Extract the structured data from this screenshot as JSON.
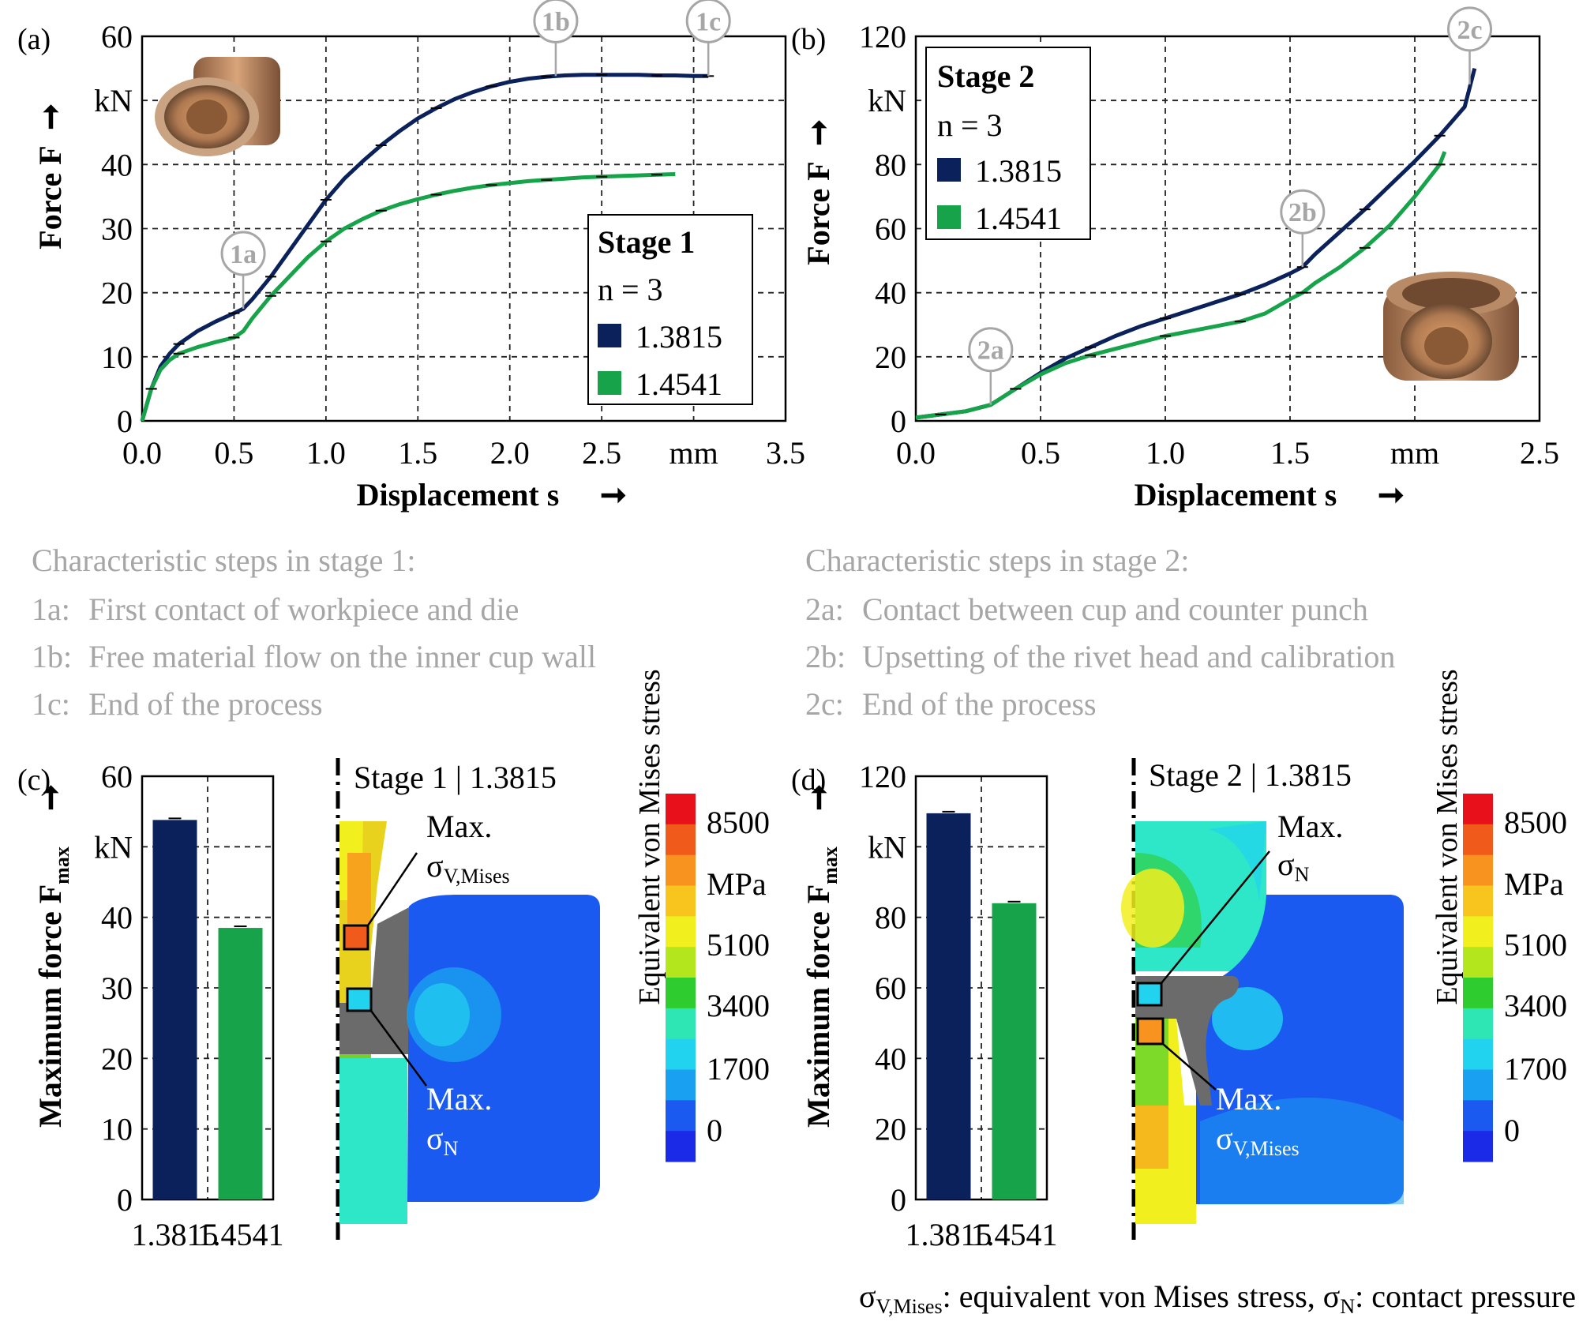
{
  "colors": {
    "s13815": "#0a215b",
    "s14541": "#16a34a",
    "label_grey": "#a6a6a6",
    "steel": "#c08a5c"
  },
  "chart_data": [
    {
      "panel": "(a)",
      "type": "line",
      "xlabel": "Displacement s",
      "ylabel": "Force F",
      "xunit": "mm",
      "yunit": "kN",
      "xlim": [
        0,
        3.5
      ],
      "ylim": [
        0,
        60
      ],
      "xticks": [
        "0.0",
        "0.5",
        "1.0",
        "1.5",
        "2.0",
        "2.5",
        "mm",
        "3.5"
      ],
      "yticks": [
        "0",
        "10",
        "20",
        "30",
        "40",
        "kN",
        "60"
      ],
      "legend": {
        "title": "Stage 1",
        "n": "n = 3",
        "items": [
          "1.3815",
          "1.4541"
        ],
        "position": "bottom-right"
      },
      "series": [
        {
          "name": "1.3815",
          "x": [
            0,
            0.05,
            0.1,
            0.15,
            0.2,
            0.3,
            0.4,
            0.5,
            0.55,
            0.6,
            0.7,
            0.8,
            0.9,
            1.0,
            1.1,
            1.2,
            1.3,
            1.4,
            1.5,
            1.6,
            1.7,
            1.8,
            1.9,
            2.0,
            2.1,
            2.2,
            2.3,
            2.4,
            2.5,
            2.6,
            2.7,
            2.8,
            2.9,
            3.0,
            3.08
          ],
          "y": [
            0,
            5,
            8.5,
            10.5,
            12,
            14,
            15.5,
            16.8,
            17.5,
            19,
            22.5,
            26.5,
            30.5,
            34.5,
            37.8,
            40.5,
            43,
            45.2,
            47.2,
            48.8,
            50.2,
            51.3,
            52.2,
            52.9,
            53.4,
            53.7,
            53.9,
            54.0,
            54.0,
            54.0,
            54.0,
            53.9,
            53.9,
            53.8,
            53.8
          ]
        },
        {
          "name": "1.4541",
          "x": [
            0,
            0.05,
            0.1,
            0.15,
            0.2,
            0.3,
            0.4,
            0.5,
            0.55,
            0.6,
            0.7,
            0.8,
            0.9,
            1.0,
            1.1,
            1.2,
            1.3,
            1.4,
            1.5,
            1.6,
            1.7,
            1.8,
            1.9,
            2.0,
            2.1,
            2.2,
            2.3,
            2.4,
            2.5,
            2.6,
            2.7,
            2.8,
            2.9
          ],
          "y": [
            0,
            5,
            8,
            9.5,
            10.5,
            11.5,
            12.3,
            13,
            14,
            16,
            19.5,
            22.5,
            25.5,
            28,
            30,
            31.5,
            32.8,
            33.8,
            34.6,
            35.3,
            35.9,
            36.4,
            36.8,
            37.1,
            37.4,
            37.6,
            37.8,
            38.0,
            38.1,
            38.2,
            38.3,
            38.4,
            38.5
          ]
        }
      ],
      "annotations": [
        {
          "label": "1a",
          "x": 0.55,
          "y": 17.5
        },
        {
          "label": "1b",
          "x": 2.25,
          "y": 53.8
        },
        {
          "label": "1c",
          "x": 3.08,
          "y": 53.8
        }
      ]
    },
    {
      "panel": "(b)",
      "type": "line",
      "xlabel": "Displacement s",
      "ylabel": "Force F",
      "xunit": "mm",
      "yunit": "kN",
      "xlim": [
        0,
        2.5
      ],
      "ylim": [
        0,
        120
      ],
      "xticks": [
        "0.0",
        "0.5",
        "1.0",
        "1.5",
        "mm",
        "2.5"
      ],
      "yticks": [
        "0",
        "20",
        "40",
        "60",
        "80",
        "kN",
        "120"
      ],
      "legend": {
        "title": "Stage 2",
        "n": "n = 3",
        "items": [
          "1.3815",
          "1.4541"
        ],
        "position": "top-left"
      },
      "series": [
        {
          "name": "1.3815",
          "x": [
            0,
            0.1,
            0.2,
            0.3,
            0.4,
            0.5,
            0.6,
            0.7,
            0.8,
            0.9,
            1.0,
            1.1,
            1.2,
            1.3,
            1.4,
            1.5,
            1.55,
            1.6,
            1.7,
            1.8,
            1.9,
            2.0,
            2.1,
            2.2,
            2.24
          ],
          "y": [
            1,
            2,
            3,
            5,
            10,
            15,
            19.5,
            23,
            26.5,
            29.5,
            32,
            34.5,
            37,
            39.5,
            42.5,
            46,
            48,
            52,
            59,
            66,
            73.5,
            81,
            89,
            98,
            110
          ]
        },
        {
          "name": "1.4541",
          "x": [
            0,
            0.1,
            0.2,
            0.3,
            0.4,
            0.5,
            0.6,
            0.7,
            0.8,
            0.9,
            1.0,
            1.1,
            1.2,
            1.3,
            1.4,
            1.5,
            1.55,
            1.6,
            1.7,
            1.8,
            1.9,
            2.0,
            2.1,
            2.12
          ],
          "y": [
            1,
            2,
            3,
            5,
            10,
            14.5,
            18,
            20.5,
            22.5,
            24.5,
            26.5,
            28,
            29.5,
            31,
            33.5,
            38,
            40,
            43,
            48,
            54,
            61,
            70,
            80,
            84
          ]
        }
      ],
      "annotations": [
        {
          "label": "2a",
          "x": 0.3,
          "y": 5
        },
        {
          "label": "2b",
          "x": 1.55,
          "y": 48
        },
        {
          "label": "2c",
          "x": 2.22,
          "y": 105
        }
      ]
    },
    {
      "panel": "(c)",
      "type": "bar",
      "ylabel": "Maximum force F",
      "ylabel_sub": "max",
      "yunit": "kN",
      "ylim": [
        0,
        60
      ],
      "yticks": [
        "0",
        "10",
        "20",
        "30",
        "40",
        "kN",
        "60"
      ],
      "categories": [
        "1.3815",
        "1.4541"
      ],
      "values": [
        53.8,
        38.5
      ]
    },
    {
      "panel": "(d)",
      "type": "bar",
      "ylabel": "Maximum force F",
      "ylabel_sub": "max",
      "yunit": "kN",
      "ylim": [
        0,
        120
      ],
      "yticks": [
        "0",
        "20",
        "40",
        "60",
        "80",
        "kN",
        "120"
      ],
      "categories": [
        "1.3815",
        "1.4541"
      ],
      "values": [
        109.5,
        84
      ]
    }
  ],
  "panel_labels": {
    "a": "(a)",
    "b": "(b)",
    "c": "(c)",
    "d": "(d)"
  },
  "steps": {
    "stage1": {
      "title": "Characteristic steps in stage 1:",
      "items": [
        {
          "id": "1a:",
          "text": "First contact of workpiece and die"
        },
        {
          "id": "1b:",
          "text": "Free material flow on the inner cup wall"
        },
        {
          "id": "1c:",
          "text": "End of the process"
        }
      ]
    },
    "stage2": {
      "title": "Characteristic steps in stage 2:",
      "items": [
        {
          "id": "2a:",
          "text": "Contact between cup and counter punch"
        },
        {
          "id": "2b:",
          "text": "Upsetting of the rivet head and calibration"
        },
        {
          "id": "2c:",
          "text": "End of the process"
        }
      ]
    }
  },
  "fem": {
    "c": {
      "title": "Stage 1 | 1.3815",
      "max_label_top": "Max.",
      "max_sym_top": "σ",
      "max_sub_top": "V,Mises",
      "max_label_bottom": "Max.",
      "max_sym_bottom": "σ",
      "max_sub_bottom": "N"
    },
    "d": {
      "title": "Stage 2 | 1.3815",
      "max_label_top": "Max.",
      "max_sym_top": "σ",
      "max_sub_top": "N",
      "max_label_bottom": "Max.",
      "max_sym_bottom": "σ",
      "max_sub_bottom": "V,Mises"
    },
    "colorbar": {
      "title": "Equivalent von Mises stress",
      "labels": [
        "8500",
        "MPa",
        "5100",
        "3400",
        "1700",
        "0"
      ],
      "colors": [
        "#e8101a",
        "#f05a1a",
        "#f7931e",
        "#f7c51e",
        "#f2ef1e",
        "#b4e61e",
        "#2ecc2e",
        "#2ee6b4",
        "#22d3f0",
        "#1aa0f0",
        "#1a5af0",
        "#1a2ae6"
      ]
    }
  },
  "footnote": {
    "sym1": "σ",
    "sub1": "V,Mises",
    "text1": ": equivalent von Mises stress, ",
    "sym2": "σ",
    "sub2": "N",
    "text2": ": contact pressure"
  }
}
